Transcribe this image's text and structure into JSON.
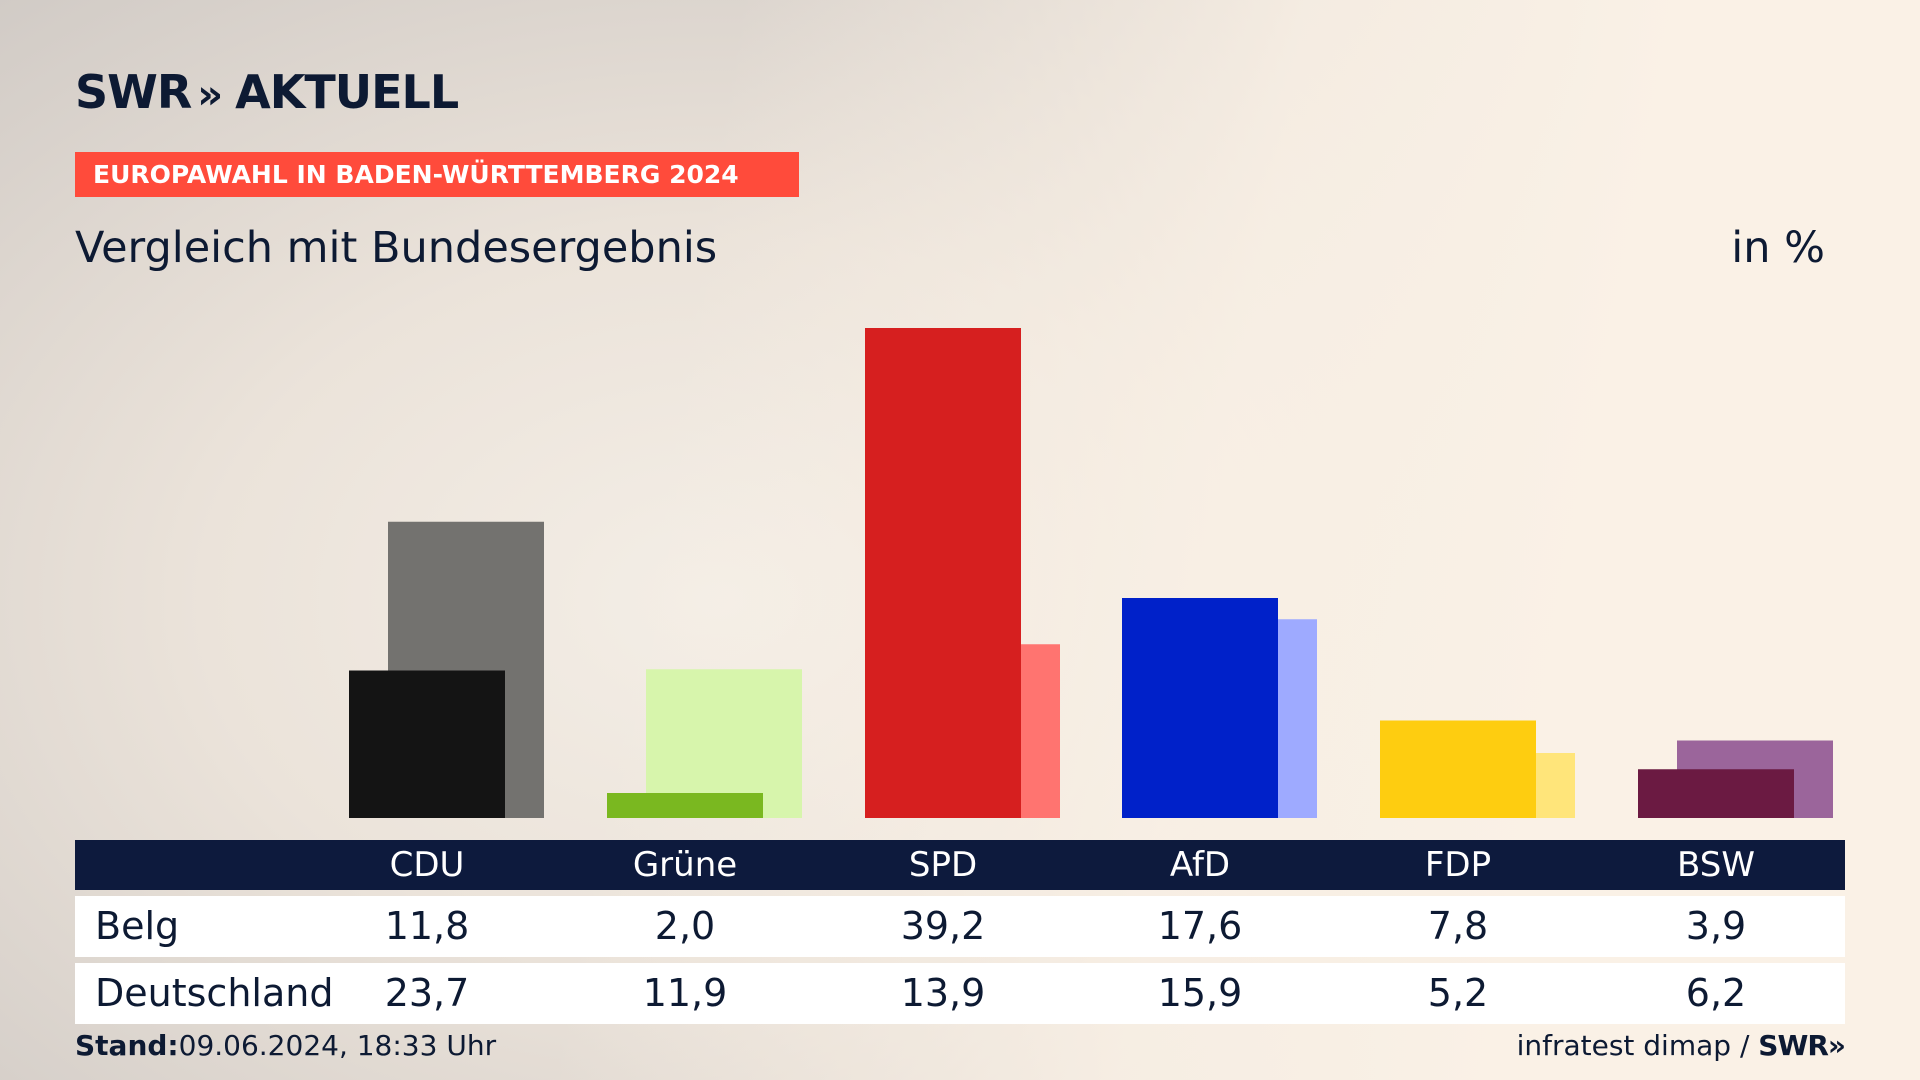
{
  "brand": {
    "name": "SWR",
    "chevrons": "»",
    "product": "AKTUELL"
  },
  "banner": "EUROPAWAHL IN BADEN-WÜRTTEMBERG 2024",
  "subtitle": "Vergleich mit Bundesergebnis",
  "unit": "in %",
  "chart_data": {
    "type": "bar",
    "title": "Vergleich mit Bundesergebnis",
    "unit": "in %",
    "categories": [
      "CDU",
      "Grüne",
      "SPD",
      "AfD",
      "FDP",
      "BSW"
    ],
    "series": [
      {
        "name": "Belg",
        "values": [
          11.8,
          2.0,
          39.2,
          17.6,
          7.8,
          3.9
        ]
      },
      {
        "name": "Deutschland",
        "values": [
          23.7,
          11.9,
          13.9,
          15.9,
          5.2,
          6.2
        ]
      }
    ],
    "colors": {
      "Belg": [
        "#141414",
        "#7ab820",
        "#d61f1f",
        "#0021c9",
        "#fecd10",
        "#6b1a42"
      ],
      "Deutschland": [
        "#73726f",
        "#d7f5ac",
        "#ff7470",
        "#9eaaff",
        "#ffe57a",
        "#9b659b"
      ]
    },
    "ylim": [
      0,
      39.2
    ],
    "grid": false
  },
  "table": {
    "headers": [
      "CDU",
      "Grüne",
      "SPD",
      "AfD",
      "FDP",
      "BSW"
    ],
    "rows": [
      {
        "label": "Belg",
        "values": [
          "11,8",
          "2,0",
          "39,2",
          "17,6",
          "7,8",
          "3,9"
        ]
      },
      {
        "label": "Deutschland",
        "values": [
          "23,7",
          "11,9",
          "13,9",
          "15,9",
          "5,2",
          "6,2"
        ]
      }
    ]
  },
  "footer": {
    "stand_label": "Stand:",
    "stand_value": "09.06.2024, 18:33 Uhr",
    "source": "infratest dimap /",
    "source_logo": "SWR»"
  }
}
